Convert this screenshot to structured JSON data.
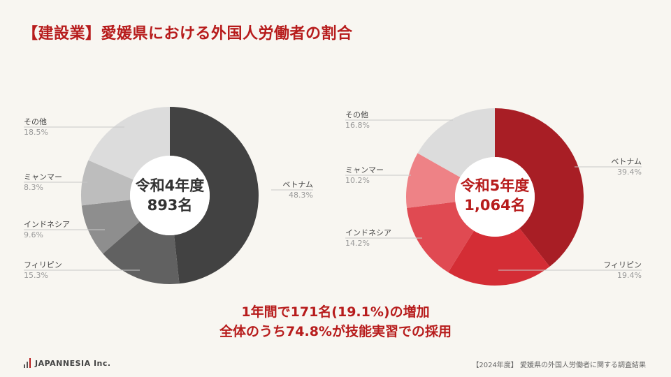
{
  "title": "【建設業】愛媛県における外国人労働者の割合",
  "chart_data": [
    {
      "type": "pie",
      "center_label_1": "令和4年度",
      "center_label_2": "893名",
      "slices": [
        {
          "name": "ベトナム",
          "value": 48.3,
          "pct": "48.3%",
          "color": "#424242"
        },
        {
          "name": "フィリピン",
          "value": 15.3,
          "pct": "15.3%",
          "color": "#616161"
        },
        {
          "name": "インドネシア",
          "value": 9.6,
          "pct": "9.6%",
          "color": "#8e8e8e"
        },
        {
          "name": "ミャンマー",
          "value": 8.3,
          "pct": "8.3%",
          "color": "#bdbdbd"
        },
        {
          "name": "その他",
          "value": 18.5,
          "pct": "18.5%",
          "color": "#dcdcdc"
        }
      ]
    },
    {
      "type": "pie",
      "center_label_1": "令和5年度",
      "center_label_2": "1,064名",
      "slices": [
        {
          "name": "ベトナム",
          "value": 39.4,
          "pct": "39.4%",
          "color": "#a81e25"
        },
        {
          "name": "フィリピン",
          "value": 19.4,
          "pct": "19.4%",
          "color": "#d42d35"
        },
        {
          "name": "インドネシア",
          "value": 14.2,
          "pct": "14.2%",
          "color": "#e04a52"
        },
        {
          "name": "ミャンマー",
          "value": 10.2,
          "pct": "10.2%",
          "color": "#ee8286"
        },
        {
          "name": "その他",
          "value": 16.8,
          "pct": "16.8%",
          "color": "#dcdcdc"
        }
      ]
    }
  ],
  "summary_line1": "1年間で171名(19.1%)の増加",
  "summary_line2": "全体のうち74.8%が技能実習での採用",
  "logo_text": "JAPANNESIA Inc.",
  "footer": "【2024年度】 愛媛県の外国人労働者に関する調査結果"
}
